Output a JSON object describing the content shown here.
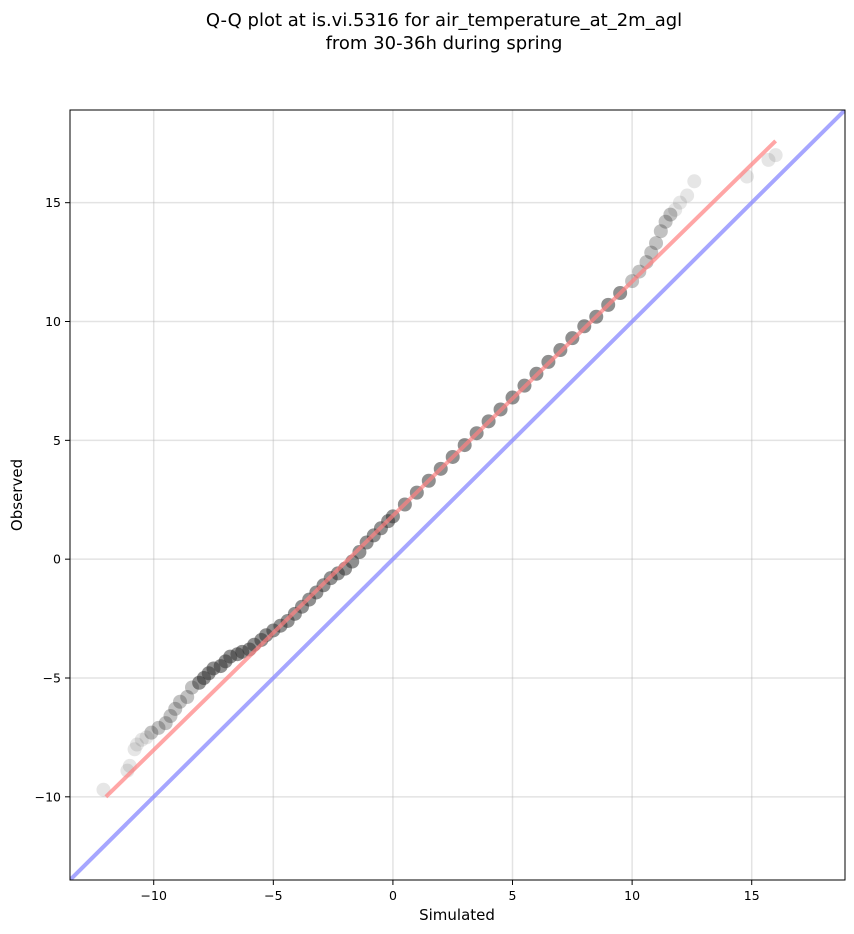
{
  "chart_data": {
    "type": "scatter",
    "title": [
      "Q-Q plot at is.vi.5316 for air_temperature_at_2m_agl",
      "from 30-36h during spring"
    ],
    "xlabel": "Simulated",
    "ylabel": "Observed",
    "xlim": [
      -13.5,
      18.9
    ],
    "ylim": [
      -13.5,
      18.9
    ],
    "xticks": [
      -10,
      -5,
      0,
      5,
      10,
      15
    ],
    "yticks": [
      -10,
      -5,
      0,
      5,
      10,
      15
    ],
    "xtick_labels": [
      "−10",
      "−5",
      "0",
      "5",
      "10",
      "15"
    ],
    "ytick_labels": [
      "−10",
      "−5",
      "0",
      "5",
      "10",
      "15"
    ],
    "grid": true,
    "colors": {
      "points": "#333333",
      "fit_line": "#ff8080",
      "identity_line": "#8888ff"
    },
    "series": [
      {
        "kind": "points",
        "x": [
          -12.1,
          -11.1,
          -11.0,
          -10.8,
          -10.7,
          -10.5,
          -10.3,
          -10.1,
          -9.8,
          -9.5,
          -9.3,
          -9.1,
          -8.9,
          -8.6,
          -8.4,
          -8.1,
          -7.9,
          -7.7,
          -7.5,
          -7.2,
          -7.0,
          -6.8,
          -6.5,
          -6.3,
          -6.0,
          -5.8,
          -5.5,
          -5.3,
          -5.0,
          -4.7,
          -4.4,
          -4.1,
          -3.8,
          -3.5,
          -3.2,
          -2.9,
          -2.6,
          -2.3,
          -2.0,
          -1.7,
          -1.4,
          -1.1,
          -0.8,
          -0.5,
          -0.2,
          0.0,
          0.5,
          1.0,
          1.5,
          2.0,
          2.5,
          3.0,
          3.5,
          4.0,
          4.5,
          5.0,
          5.5,
          6.0,
          6.5,
          7.0,
          7.5,
          8.0,
          8.5,
          9.0,
          9.5,
          10.0,
          10.3,
          10.6,
          10.8,
          11.0,
          11.2,
          11.4,
          11.6,
          11.8,
          12.0,
          12.3,
          12.6,
          14.8,
          15.7,
          16.0
        ],
        "y": [
          -9.7,
          -8.9,
          -8.7,
          -8.0,
          -7.8,
          -7.6,
          -7.5,
          -7.3,
          -7.1,
          -6.9,
          -6.6,
          -6.3,
          -6.0,
          -5.8,
          -5.4,
          -5.2,
          -5.0,
          -4.8,
          -4.6,
          -4.5,
          -4.3,
          -4.1,
          -4.0,
          -3.9,
          -3.8,
          -3.6,
          -3.4,
          -3.2,
          -3.0,
          -2.8,
          -2.6,
          -2.3,
          -2.0,
          -1.7,
          -1.4,
          -1.1,
          -0.8,
          -0.6,
          -0.4,
          -0.1,
          0.3,
          0.7,
          1.0,
          1.3,
          1.6,
          1.8,
          2.3,
          2.8,
          3.3,
          3.8,
          4.3,
          4.8,
          5.3,
          5.8,
          6.3,
          6.8,
          7.3,
          7.8,
          8.3,
          8.8,
          9.3,
          9.8,
          10.2,
          10.7,
          11.2,
          11.7,
          12.1,
          12.5,
          12.9,
          13.3,
          13.8,
          14.2,
          14.5,
          14.7,
          15.0,
          15.3,
          15.9,
          16.1,
          16.8,
          17.0
        ]
      },
      {
        "kind": "fit_line",
        "x": [
          -12.0,
          16.0
        ],
        "y": [
          -10.0,
          17.6
        ]
      },
      {
        "kind": "identity_line",
        "x": [
          -13.5,
          18.9
        ],
        "y": [
          -13.5,
          18.9
        ]
      }
    ]
  }
}
